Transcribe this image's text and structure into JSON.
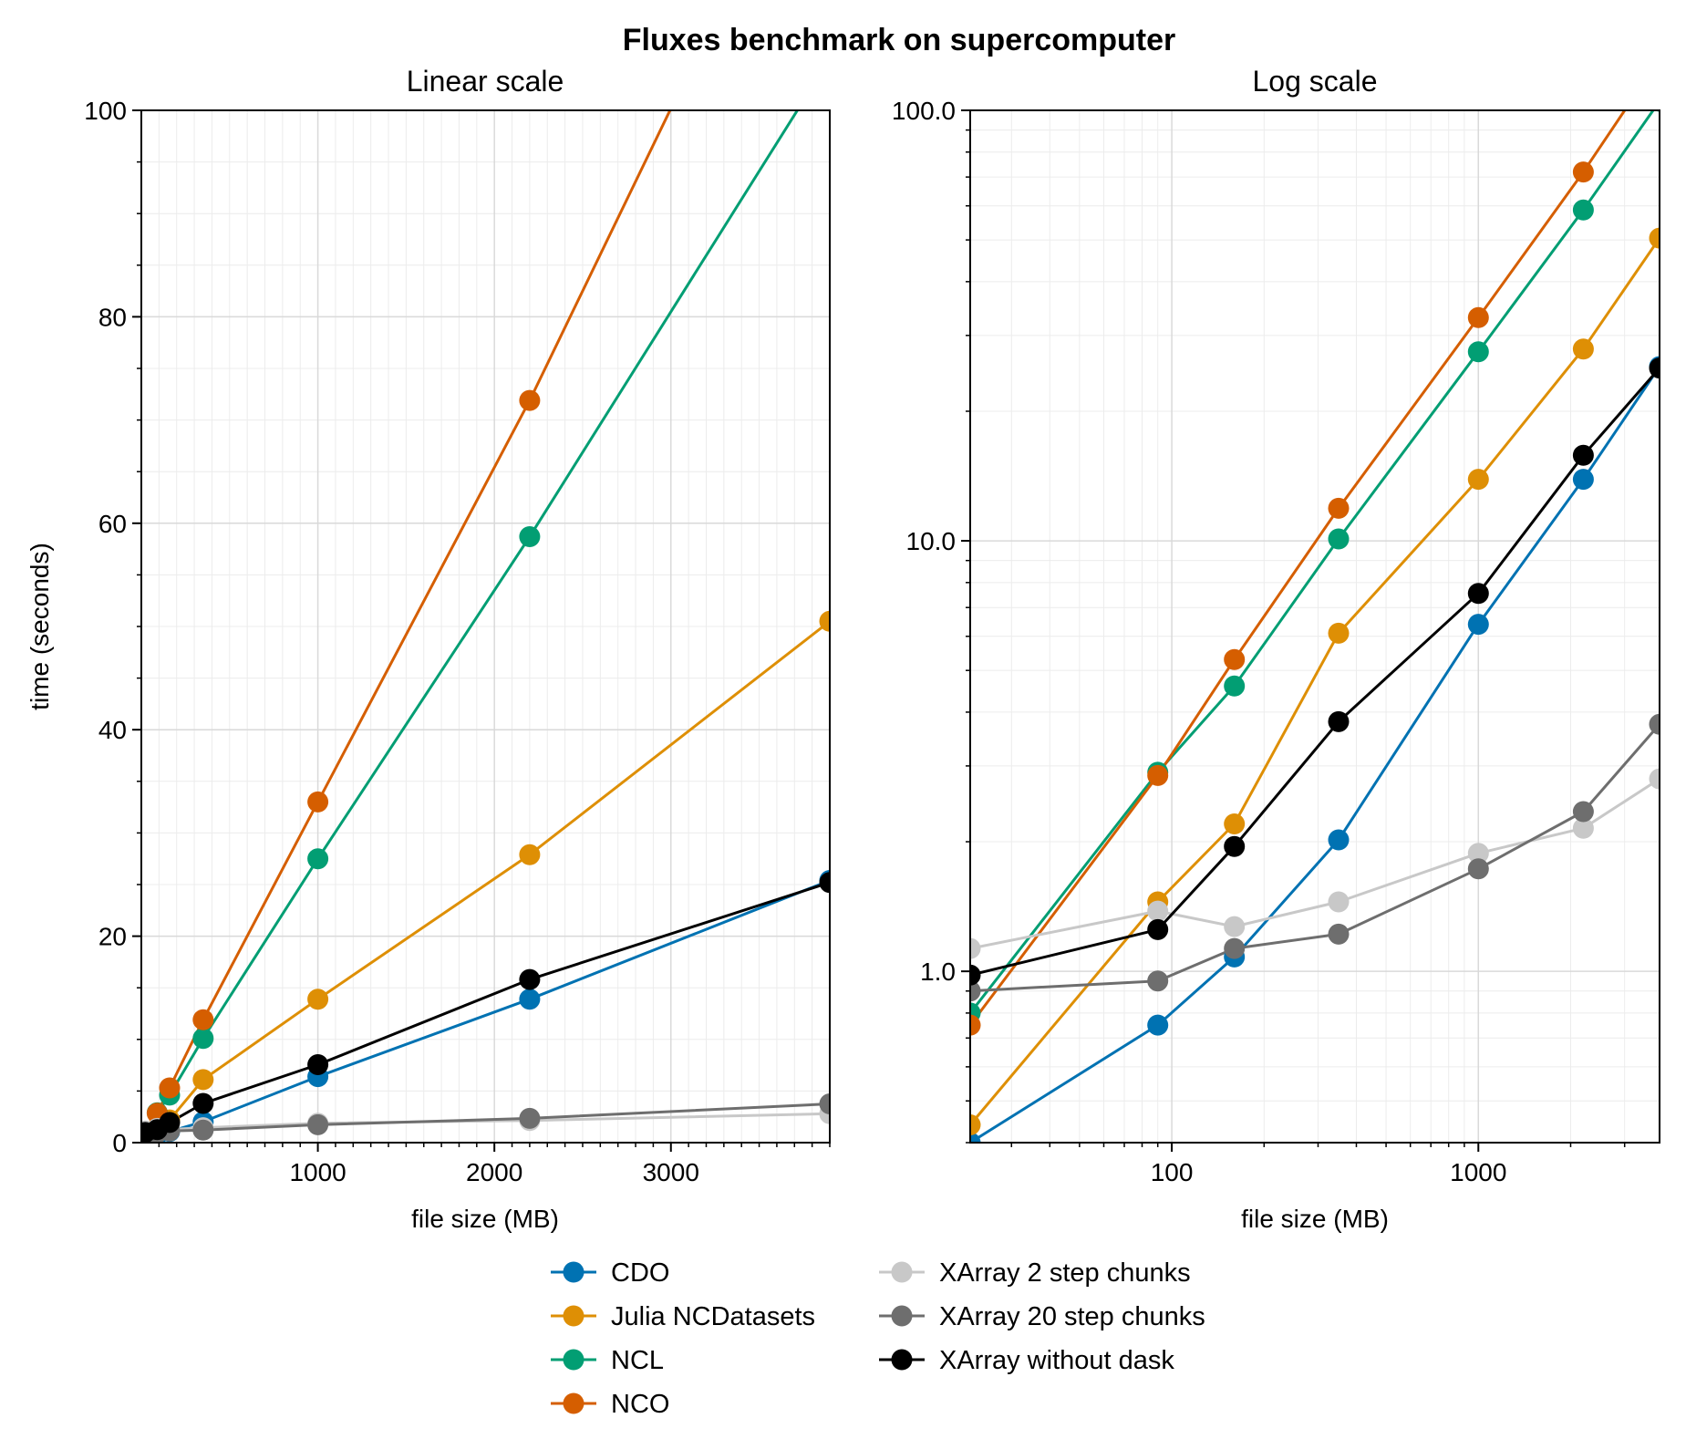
{
  "figure": {
    "title": "Fluxes benchmark on supercomputer"
  },
  "panels": {
    "linear": {
      "title": "Linear scale",
      "xlabel": "file size (MB)",
      "ylabel": "time (seconds)"
    },
    "log": {
      "title": "Log scale",
      "xlabel": "file size (MB)"
    }
  },
  "chart_data": [
    {
      "type": "line",
      "title": "Linear scale",
      "xlabel": "file size (MB)",
      "ylabel": "time (seconds)",
      "x_scale": "linear",
      "y_scale": "linear",
      "xlim": [
        0,
        3900
      ],
      "ylim": [
        0,
        100
      ],
      "xticks": [
        1000,
        2000,
        3000
      ],
      "yticks": [
        0,
        20,
        40,
        60,
        80,
        100
      ],
      "tick_labels_x": [
        "1000",
        "2000",
        "3000"
      ],
      "tick_labels_y": [
        "0",
        "20",
        "40",
        "60",
        "80",
        "100"
      ],
      "grid": true,
      "legend": "bottom-center",
      "x": [
        22,
        90,
        160,
        350,
        1000,
        2200,
        3900
      ],
      "series": [
        {
          "name": "CDO",
          "color": "#0072b2",
          "values": [
            0.4,
            0.75,
            1.08,
            2.02,
            6.4,
            13.9,
            25.4
          ]
        },
        {
          "name": "Julia NCDatasets",
          "color": "#de8f05",
          "values": [
            0.44,
            1.45,
            2.2,
            6.1,
            13.9,
            27.9,
            50.5
          ]
        },
        {
          "name": "NCL",
          "color": "#029e73",
          "values": [
            0.8,
            2.9,
            4.6,
            10.1,
            27.5,
            58.7,
            105
          ]
        },
        {
          "name": "NCO",
          "color": "#d55e00",
          "values": [
            0.75,
            2.85,
            5.3,
            11.9,
            33.0,
            71.9,
            132
          ]
        },
        {
          "name": "XArray 2 step chunks",
          "color": "#c8c8c8",
          "values": [
            1.13,
            1.38,
            1.27,
            1.45,
            1.88,
            2.15,
            2.8
          ]
        },
        {
          "name": "XArray 20 step chunks",
          "color": "#6e6e6e",
          "values": [
            0.9,
            0.95,
            1.13,
            1.22,
            1.73,
            2.35,
            3.75
          ]
        },
        {
          "name": "XArray without dask",
          "color": "#000000",
          "values": [
            0.98,
            1.25,
            1.95,
            3.8,
            7.55,
            15.8,
            25.2
          ]
        }
      ]
    },
    {
      "type": "line",
      "title": "Log scale",
      "xlabel": "file size (MB)",
      "ylabel": "",
      "x_scale": "log",
      "y_scale": "log",
      "xlim": [
        22,
        3900
      ],
      "ylim": [
        0.4,
        100
      ],
      "xticks": [
        100,
        1000
      ],
      "yticks": [
        1,
        10,
        100
      ],
      "tick_labels_x": [
        "100",
        "1000"
      ],
      "tick_labels_y": [
        "1.0",
        "10.0",
        "100.0"
      ],
      "grid": true,
      "x": [
        22,
        90,
        160,
        350,
        1000,
        2200,
        3900
      ],
      "series": [
        {
          "name": "CDO",
          "color": "#0072b2",
          "values": [
            0.4,
            0.75,
            1.08,
            2.02,
            6.4,
            13.9,
            25.4
          ]
        },
        {
          "name": "Julia NCDatasets",
          "color": "#de8f05",
          "values": [
            0.44,
            1.45,
            2.2,
            6.1,
            13.9,
            27.9,
            50.5
          ]
        },
        {
          "name": "NCL",
          "color": "#029e73",
          "values": [
            0.8,
            2.9,
            4.6,
            10.1,
            27.5,
            58.7,
            105
          ]
        },
        {
          "name": "NCO",
          "color": "#d55e00",
          "values": [
            0.75,
            2.85,
            5.3,
            11.9,
            33.0,
            71.9,
            132
          ]
        },
        {
          "name": "XArray 2 step chunks",
          "color": "#c8c8c8",
          "values": [
            1.13,
            1.38,
            1.27,
            1.45,
            1.88,
            2.15,
            2.8
          ]
        },
        {
          "name": "XArray 20 step chunks",
          "color": "#6e6e6e",
          "values": [
            0.9,
            0.95,
            1.13,
            1.22,
            1.73,
            2.35,
            3.75
          ]
        },
        {
          "name": "XArray without dask",
          "color": "#000000",
          "values": [
            0.98,
            1.25,
            1.95,
            3.8,
            7.55,
            15.8,
            25.2
          ]
        }
      ]
    }
  ]
}
